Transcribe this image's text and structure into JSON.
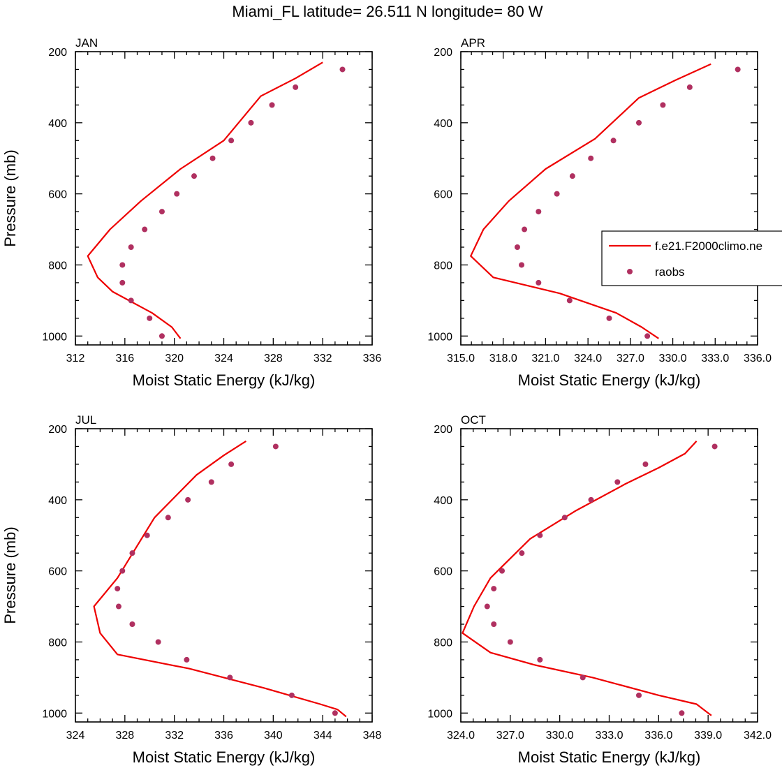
{
  "figure": {
    "title": "Miami_FL  latitude= 26.511 N longitude= 80 W",
    "colors": {
      "model": "#ee0000",
      "obs": "#b03060"
    },
    "legend": {
      "placement": "right, inside APR panel",
      "entries": [
        {
          "label": "f.e21.F2000climo.ne",
          "marker": "line"
        },
        {
          "label": "raobs",
          "marker": "dot"
        }
      ]
    }
  },
  "chart_data": [
    {
      "type": "line",
      "panel": "JAN",
      "xlabel": "Moist Static Energy (kJ/kg)",
      "ylabel": "Pressure (mb)",
      "xlim": [
        312,
        336
      ],
      "ylim": [
        200,
        1025
      ],
      "y_inverted": true,
      "xticks": [
        312,
        316,
        320,
        324,
        328,
        332,
        336
      ],
      "xtick_labels": [
        "312",
        "316",
        "320",
        "324",
        "328",
        "332",
        "336"
      ],
      "yticks": [
        200,
        400,
        600,
        800,
        1000
      ],
      "ytick_labels": [
        "200",
        "400",
        "600",
        "800",
        "1000"
      ],
      "series": [
        {
          "name": "f.e21.F2000climo.ne",
          "kind": "line",
          "x": [
            320.5,
            319.8,
            318.2,
            315.0,
            313.8,
            313.0,
            314.8,
            317.3,
            320.5,
            324.0,
            327.0,
            329.8,
            332.0
          ],
          "y": [
            1007,
            975,
            935,
            875,
            835,
            775,
            700,
            620,
            530,
            450,
            325,
            275,
            230
          ]
        },
        {
          "name": "raobs",
          "kind": "scatter",
          "x": [
            319.0,
            318.0,
            316.5,
            315.8,
            315.8,
            316.5,
            317.6,
            319.0,
            320.2,
            321.6,
            323.1,
            324.6,
            326.2,
            327.9,
            329.8,
            333.6
          ],
          "y": [
            1000,
            950,
            900,
            850,
            800,
            750,
            700,
            650,
            600,
            550,
            500,
            450,
            400,
            350,
            300,
            250
          ]
        }
      ]
    },
    {
      "type": "line",
      "panel": "APR",
      "xlabel": "Moist Static Energy (kJ/kg)",
      "ylabel": "",
      "xlim": [
        315.0,
        336.0
      ],
      "ylim": [
        200,
        1025
      ],
      "y_inverted": true,
      "xticks": [
        315,
        318,
        321,
        324,
        327,
        330,
        333,
        336
      ],
      "xtick_labels": [
        "315.0",
        "318.0",
        "321.0",
        "324.0",
        "327.0",
        "330.0",
        "333.0",
        "336.0"
      ],
      "yticks": [
        200,
        400,
        600,
        800,
        1000
      ],
      "ytick_labels": [
        "200",
        "400",
        "600",
        "800",
        "1000"
      ],
      "series": [
        {
          "name": "f.e21.F2000climo.ne",
          "kind": "line",
          "x": [
            329.0,
            327.8,
            326.0,
            322.0,
            317.3,
            315.7,
            316.6,
            318.4,
            321.0,
            324.5,
            327.6,
            330.2,
            332.7
          ],
          "y": [
            1007,
            975,
            935,
            880,
            835,
            775,
            700,
            620,
            530,
            445,
            330,
            280,
            235
          ]
        },
        {
          "name": "raobs",
          "kind": "scatter",
          "x": [
            328.2,
            325.5,
            322.7,
            320.5,
            319.3,
            319.0,
            319.5,
            320.5,
            321.8,
            322.9,
            324.2,
            325.8,
            327.6,
            329.3,
            331.2,
            334.6
          ],
          "y": [
            1000,
            950,
            900,
            850,
            800,
            750,
            700,
            650,
            600,
            550,
            500,
            450,
            400,
            350,
            300,
            250
          ]
        }
      ]
    },
    {
      "type": "line",
      "panel": "JUL",
      "xlabel": "Moist Static Energy (kJ/kg)",
      "ylabel": "Pressure (mb)",
      "xlim": [
        324,
        348
      ],
      "ylim": [
        200,
        1025
      ],
      "y_inverted": true,
      "xticks": [
        324,
        328,
        332,
        336,
        340,
        344,
        348
      ],
      "xtick_labels": [
        "324",
        "328",
        "332",
        "336",
        "340",
        "344",
        "348"
      ],
      "yticks": [
        200,
        400,
        600,
        800,
        1000
      ],
      "ytick_labels": [
        "200",
        "400",
        "600",
        "800",
        "1000"
      ],
      "series": [
        {
          "name": "f.e21.F2000climo.ne",
          "kind": "line",
          "x": [
            345.9,
            345.2,
            343.8,
            339.3,
            333.2,
            327.4,
            326.0,
            325.5,
            327.4,
            330.4,
            333.8,
            336.0,
            337.8
          ],
          "y": [
            1010,
            990,
            975,
            930,
            875,
            835,
            775,
            700,
            620,
            450,
            330,
            275,
            235
          ]
        },
        {
          "name": "raobs",
          "kind": "scatter",
          "x": [
            345.0,
            341.5,
            336.5,
            333.0,
            330.7,
            328.6,
            327.5,
            327.4,
            327.8,
            328.6,
            329.8,
            331.5,
            333.1,
            335.0,
            336.6,
            340.2
          ],
          "y": [
            1000,
            950,
            900,
            850,
            800,
            750,
            700,
            650,
            600,
            550,
            500,
            450,
            400,
            350,
            300,
            250
          ]
        }
      ]
    },
    {
      "type": "line",
      "panel": "OCT",
      "xlabel": "Moist Static Energy (kJ/kg)",
      "ylabel": "",
      "xlim": [
        324.0,
        342.0
      ],
      "ylim": [
        200,
        1025
      ],
      "y_inverted": true,
      "xticks": [
        324,
        327,
        330,
        333,
        336,
        339,
        342
      ],
      "xtick_labels": [
        "324.0",
        "327.0",
        "330.0",
        "333.0",
        "336.0",
        "339.0",
        "342.0"
      ],
      "yticks": [
        200,
        400,
        600,
        800,
        1000
      ],
      "ytick_labels": [
        "200",
        "400",
        "600",
        "800",
        "1000"
      ],
      "series": [
        {
          "name": "f.e21.F2000climo.ne",
          "kind": "line",
          "x": [
            339.2,
            338.3,
            336.0,
            332.0,
            328.5,
            325.8,
            324.1,
            324.8,
            325.8,
            328.2,
            331.0,
            334.0,
            336.0,
            337.6,
            338.3
          ],
          "y": [
            1007,
            975,
            950,
            900,
            865,
            830,
            775,
            700,
            620,
            510,
            430,
            355,
            310,
            270,
            235
          ]
        },
        {
          "name": "raobs",
          "kind": "scatter",
          "x": [
            337.4,
            334.8,
            331.4,
            328.8,
            327.0,
            326.0,
            325.6,
            326.0,
            326.5,
            327.7,
            328.8,
            330.3,
            331.9,
            333.5,
            335.2,
            339.4
          ],
          "y": [
            1000,
            950,
            900,
            850,
            800,
            750,
            700,
            650,
            600,
            550,
            500,
            450,
            400,
            350,
            300,
            250
          ]
        }
      ]
    }
  ]
}
